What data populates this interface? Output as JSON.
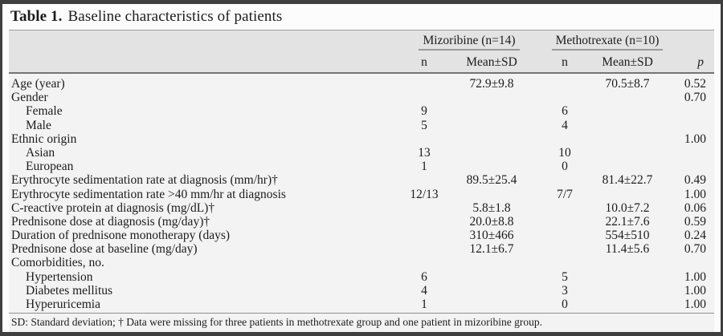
{
  "title": {
    "label": "Table 1.",
    "text": "Baseline characteristics of patients"
  },
  "colors": {
    "frame": "#3f3f3f",
    "header_band": "#e3e3e3",
    "body_bg": "#f3f3f3"
  },
  "table": {
    "groups": [
      {
        "label": "Mizoribine (n=14)"
      },
      {
        "label": "Methotrexate (n=10)"
      }
    ],
    "subheaders": {
      "n1": "n",
      "mean1": "Mean±SD",
      "n2": "n",
      "mean2": "Mean±SD",
      "p": "p"
    },
    "rows": [
      {
        "label": "Age (year)",
        "indent": false,
        "miz_n": "",
        "miz_mean": "72.9±9.8",
        "mtx_n": "",
        "mtx_mean": "70.5±8.7",
        "p": "0.52"
      },
      {
        "label": "Gender",
        "indent": false,
        "miz_n": "",
        "miz_mean": "",
        "mtx_n": "",
        "mtx_mean": "",
        "p": "0.70"
      },
      {
        "label": "Female",
        "indent": true,
        "miz_n": "9",
        "miz_mean": "",
        "mtx_n": "6",
        "mtx_mean": "",
        "p": ""
      },
      {
        "label": "Male",
        "indent": true,
        "miz_n": "5",
        "miz_mean": "",
        "mtx_n": "4",
        "mtx_mean": "",
        "p": ""
      },
      {
        "label": "Ethnic origin",
        "indent": false,
        "miz_n": "",
        "miz_mean": "",
        "mtx_n": "",
        "mtx_mean": "",
        "p": "1.00"
      },
      {
        "label": "Asian",
        "indent": true,
        "miz_n": "13",
        "miz_mean": "",
        "mtx_n": "10",
        "mtx_mean": "",
        "p": ""
      },
      {
        "label": "European",
        "indent": true,
        "miz_n": "1",
        "miz_mean": "",
        "mtx_n": "0",
        "mtx_mean": "",
        "p": ""
      },
      {
        "label": "Erythrocyte sedimentation rate at diagnosis (mm/hr)†",
        "indent": false,
        "miz_n": "",
        "miz_mean": "89.5±25.4",
        "mtx_n": "",
        "mtx_mean": "81.4±22.7",
        "p": "0.49"
      },
      {
        "label": "Erythrocyte sedimentation rate >40 mm/hr at diagnosis",
        "indent": false,
        "miz_n": "12/13",
        "miz_mean": "",
        "mtx_n": "7/7",
        "mtx_mean": "",
        "p": "1.00"
      },
      {
        "label": "C-reactive protein at diagnosis (mg/dL)†",
        "indent": false,
        "miz_n": "",
        "miz_mean": "5.8±1.8",
        "mtx_n": "",
        "mtx_mean": "10.0±7.2",
        "p": "0.06"
      },
      {
        "label": "Prednisone dose at diagnosis (mg/day)†",
        "indent": false,
        "miz_n": "",
        "miz_mean": "20.0±8.8",
        "mtx_n": "",
        "mtx_mean": "22.1±7.6",
        "p": "0.59"
      },
      {
        "label": "Duration of prednisone monotherapy (days)",
        "indent": false,
        "miz_n": "",
        "miz_mean": "310±466",
        "mtx_n": "",
        "mtx_mean": "554±510",
        "p": "0.24"
      },
      {
        "label": "Prednisone dose at baseline (mg/day)",
        "indent": false,
        "miz_n": "",
        "miz_mean": "12.1±6.7",
        "mtx_n": "",
        "mtx_mean": "11.4±5.6",
        "p": "0.70"
      },
      {
        "label": "Comorbidities, no.",
        "indent": false,
        "miz_n": "",
        "miz_mean": "",
        "mtx_n": "",
        "mtx_mean": "",
        "p": ""
      },
      {
        "label": "Hypertension",
        "indent": true,
        "miz_n": "6",
        "miz_mean": "",
        "mtx_n": "5",
        "mtx_mean": "",
        "p": "1.00"
      },
      {
        "label": "Diabetes mellitus",
        "indent": true,
        "miz_n": "4",
        "miz_mean": "",
        "mtx_n": "3",
        "mtx_mean": "",
        "p": "1.00"
      },
      {
        "label": "Hyperuricemia",
        "indent": true,
        "miz_n": "1",
        "miz_mean": "",
        "mtx_n": "0",
        "mtx_mean": "",
        "p": "1.00"
      }
    ]
  },
  "footnote": "SD: Standard deviation; † Data were missing for three patients in methotrexate group and one patient in mizoribine group."
}
